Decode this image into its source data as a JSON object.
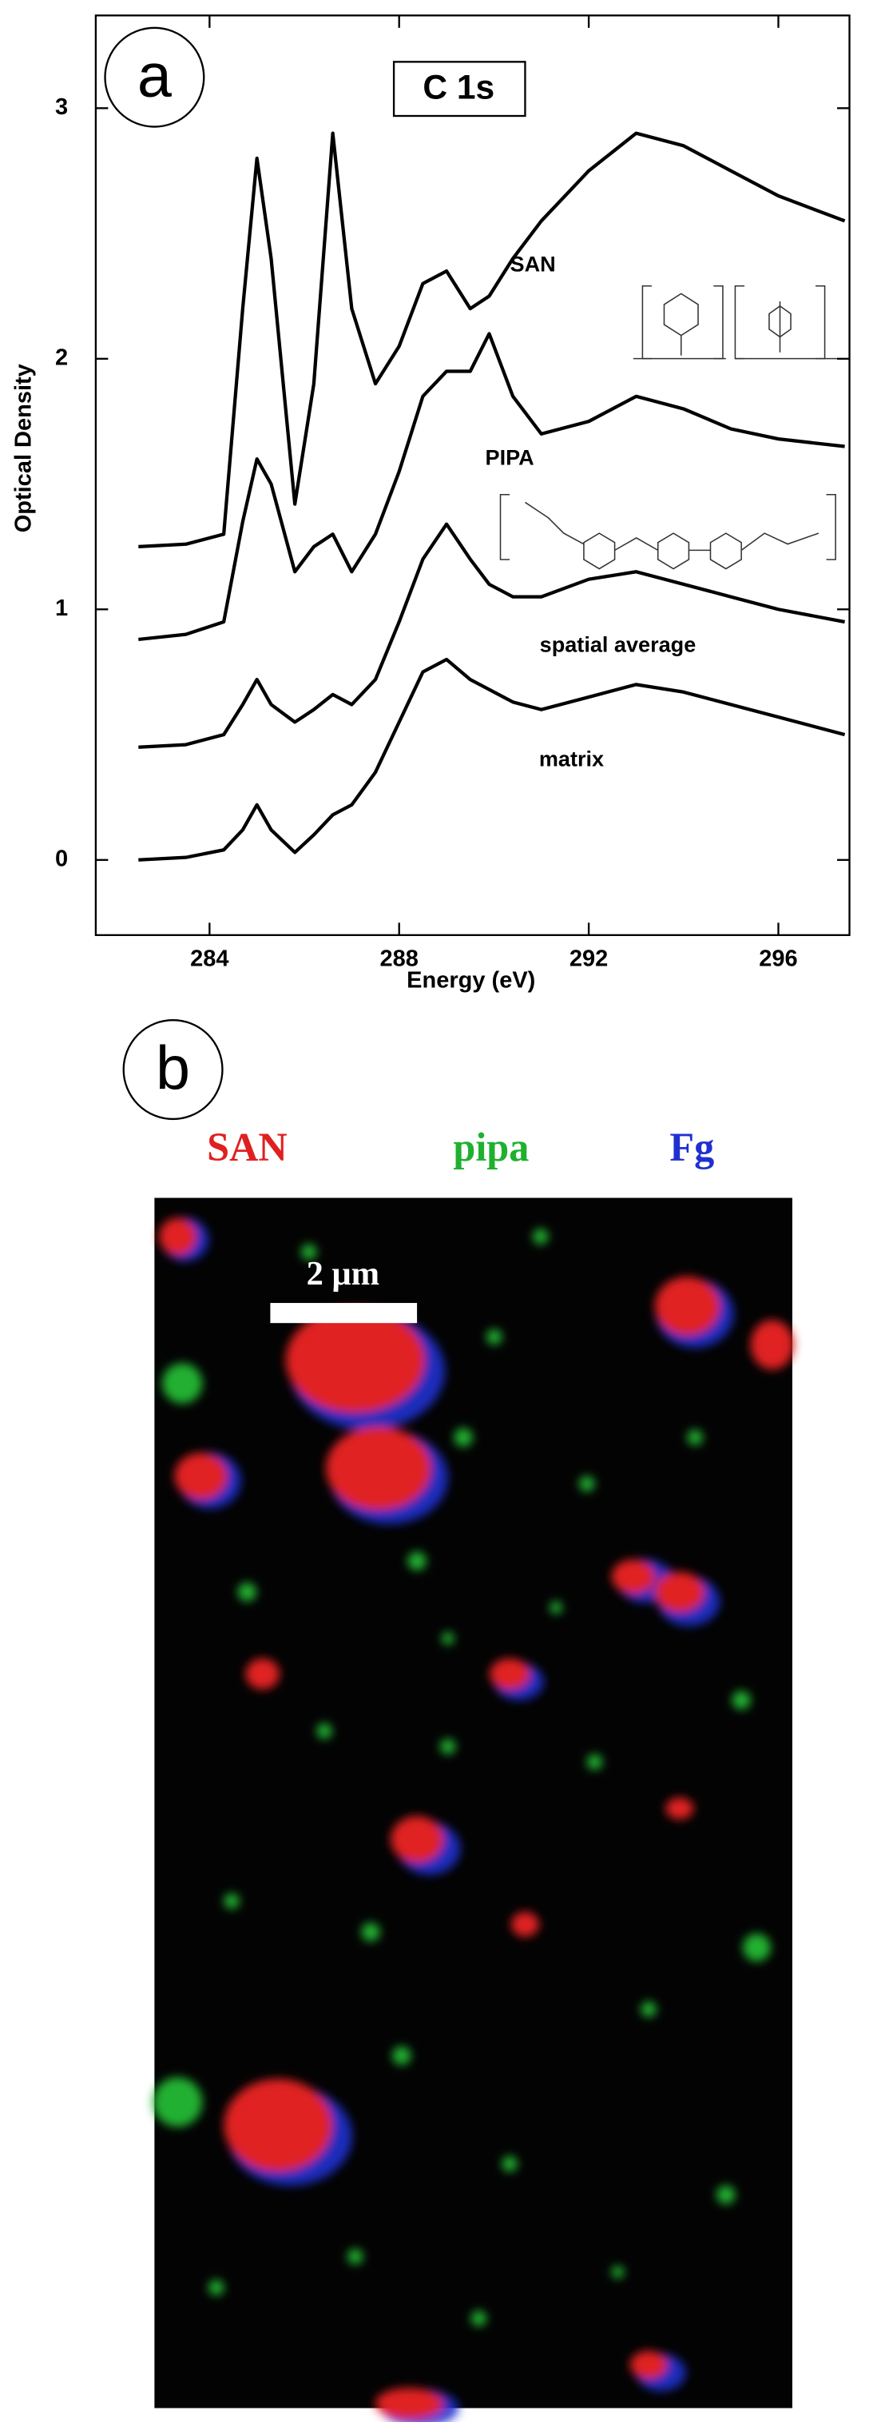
{
  "chart_data": {
    "type": "line",
    "panel_label": "a",
    "annotation": "C 1s",
    "xlabel": "Energy (eV)",
    "ylabel": "Optical Density",
    "x": [
      282.5,
      283.5,
      284.3,
      284.7,
      285,
      285.3,
      285.8,
      286.2,
      286.6,
      287,
      287.5,
      288,
      288.5,
      289,
      289.5,
      289.9,
      290.4,
      291,
      292,
      293,
      294,
      295,
      296,
      297.4
    ],
    "series": [
      {
        "name": "SAN",
        "color": "#000000",
        "values": [
          1.25,
          1.26,
          1.3,
          2.2,
          2.8,
          2.4,
          1.42,
          1.9,
          2.9,
          2.2,
          1.9,
          2.05,
          2.3,
          2.35,
          2.2,
          2.25,
          2.4,
          2.55,
          2.75,
          2.9,
          2.85,
          2.75,
          2.65,
          2.55
        ]
      },
      {
        "name": "PIPA",
        "color": "#000000",
        "values": [
          0.88,
          0.9,
          0.95,
          1.35,
          1.6,
          1.5,
          1.15,
          1.25,
          1.3,
          1.15,
          1.3,
          1.55,
          1.85,
          1.95,
          1.95,
          2.1,
          1.85,
          1.7,
          1.75,
          1.85,
          1.8,
          1.72,
          1.68,
          1.65
        ]
      },
      {
        "name": "spatial average",
        "color": "#000000",
        "values": [
          0.45,
          0.46,
          0.5,
          0.62,
          0.72,
          0.62,
          0.55,
          0.6,
          0.66,
          0.62,
          0.72,
          0.95,
          1.2,
          1.34,
          1.2,
          1.1,
          1.05,
          1.05,
          1.12,
          1.15,
          1.1,
          1.05,
          1.0,
          0.95
        ]
      },
      {
        "name": "matrix",
        "color": "#000000",
        "values": [
          0.0,
          0.01,
          0.04,
          0.12,
          0.22,
          0.12,
          0.03,
          0.1,
          0.18,
          0.22,
          0.35,
          0.55,
          0.75,
          0.8,
          0.72,
          0.68,
          0.63,
          0.6,
          0.65,
          0.7,
          0.67,
          0.62,
          0.57,
          0.5
        ]
      }
    ],
    "xlim": [
      281.6,
      297.5
    ],
    "ylim": [
      -0.3,
      3.37
    ],
    "xticks": [
      284,
      288,
      292,
      296
    ],
    "yticks": [
      0,
      1,
      2,
      3
    ]
  },
  "figure_b": {
    "panel_label": "b",
    "scale_bar": "2 μm",
    "channels": [
      {
        "name": "SAN",
        "color": "#e02020"
      },
      {
        "name": "pipa",
        "color": "#20b030"
      },
      {
        "name": "Fg",
        "color": "#2030d0"
      }
    ]
  }
}
